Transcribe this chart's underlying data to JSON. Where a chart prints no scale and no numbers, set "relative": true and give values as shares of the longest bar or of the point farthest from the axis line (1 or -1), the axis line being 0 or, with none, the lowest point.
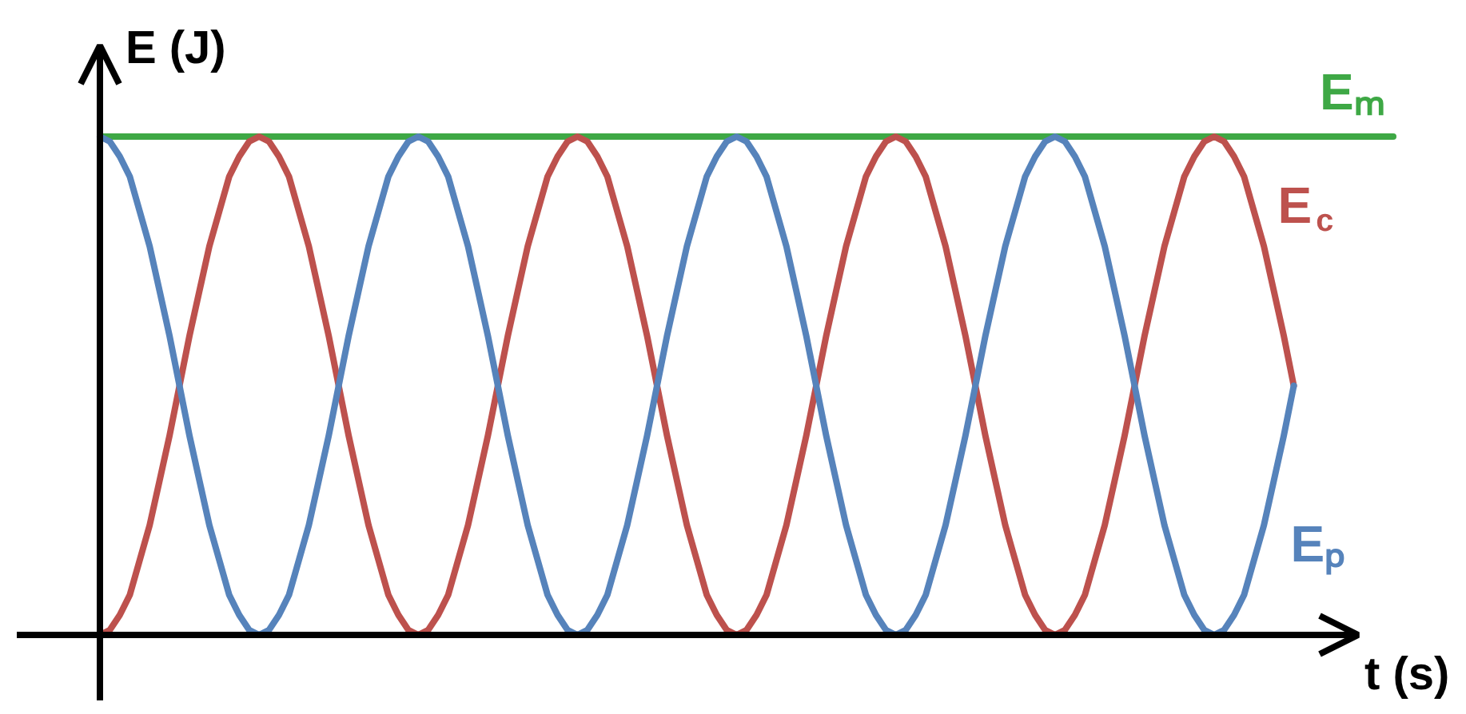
{
  "chart_data": {
    "type": "line",
    "relative": true,
    "xlabel": "t (s)",
    "ylabel": "E (J)",
    "categories": [
      null,
      null,
      null,
      null,
      null,
      null,
      null,
      null,
      null,
      null,
      null,
      null,
      null,
      null,
      null,
      null,
      null,
      null,
      null,
      null,
      null,
      null,
      null,
      null,
      null,
      null,
      null,
      null,
      null,
      null,
      null,
      null,
      null,
      null,
      null,
      null,
      null,
      null,
      null,
      null,
      null,
      null,
      null,
      null,
      null,
      null,
      null,
      null,
      null,
      null,
      null,
      null,
      null,
      null,
      null,
      null,
      null,
      null,
      null,
      null,
      null,
      null,
      null,
      null,
      null,
      null,
      null,
      null,
      null,
      null,
      null,
      null,
      null,
      null,
      null,
      null,
      null,
      null,
      null,
      null,
      null,
      null,
      null,
      null,
      null,
      null,
      null,
      null,
      null,
      null,
      null,
      null,
      null,
      null,
      null,
      null,
      null,
      null,
      null,
      null,
      null,
      null,
      null,
      null,
      null,
      null,
      null,
      null,
      null,
      null,
      null,
      null,
      null,
      null,
      null,
      null,
      null,
      null,
      null,
      null,
      null,
      null,
      null,
      null,
      null,
      null,
      null,
      null,
      null,
      null,
      null
    ],
    "series": [
      {
        "name": "Eₘ",
        "color": "#3ea845",
        "values": [
          1,
          1,
          1,
          1,
          1,
          1,
          1,
          1,
          1,
          1,
          1,
          1,
          1,
          1,
          1,
          1,
          1,
          1,
          1,
          1,
          1,
          1,
          1,
          1,
          1,
          1,
          1,
          1,
          1,
          1,
          1,
          1,
          1,
          1,
          1,
          1,
          1,
          1,
          1,
          1,
          1,
          1,
          1,
          1,
          1,
          1,
          1,
          1,
          1,
          1,
          1,
          1,
          1,
          1,
          1,
          1,
          1,
          1,
          1,
          1,
          1,
          1,
          1,
          1,
          1,
          1,
          1,
          1,
          1,
          1,
          1,
          1,
          1,
          1,
          1,
          1,
          1,
          1,
          1,
          1,
          1,
          1,
          1,
          1,
          1,
          1,
          1,
          1,
          1,
          1,
          1,
          1,
          1,
          1,
          1,
          1,
          1,
          1,
          1,
          1,
          1,
          1,
          1,
          1,
          1,
          1,
          1,
          1,
          1,
          1,
          1,
          1,
          1,
          1,
          1,
          1,
          1,
          1,
          1,
          1,
          1,
          1,
          1,
          1,
          1,
          1,
          1,
          1,
          1,
          1,
          1
        ]
      },
      {
        "name": "E$_{c}$",
        "color": "#bd514d",
        "values": [
          0,
          0.01,
          0.04,
          0.08,
          0.15,
          0.22,
          0.31,
          0.4,
          0.5,
          0.6,
          0.69,
          0.78,
          0.85,
          0.92,
          0.96,
          0.99,
          1,
          0.99,
          0.96,
          0.92,
          0.85,
          0.78,
          0.69,
          0.6,
          0.5,
          0.4,
          0.31,
          0.22,
          0.15,
          0.08,
          0.04,
          0.01,
          0,
          0.01,
          0.04,
          0.08,
          0.15,
          0.22,
          0.31,
          0.4,
          0.5,
          0.6,
          0.69,
          0.78,
          0.85,
          0.92,
          0.96,
          0.99,
          1,
          0.99,
          0.96,
          0.92,
          0.85,
          0.78,
          0.69,
          0.6,
          0.5,
          0.4,
          0.31,
          0.22,
          0.15,
          0.08,
          0.04,
          0.01,
          0,
          0.01,
          0.04,
          0.08,
          0.15,
          0.22,
          0.31,
          0.4,
          0.5,
          0.6,
          0.69,
          0.78,
          0.85,
          0.92,
          0.96,
          0.99,
          1,
          0.99,
          0.96,
          0.92,
          0.85,
          0.78,
          0.69,
          0.6,
          0.5,
          0.4,
          0.31,
          0.22,
          0.15,
          0.08,
          0.04,
          0.01,
          0,
          0.01,
          0.04,
          0.08,
          0.15,
          0.22,
          0.31,
          0.4,
          0.5,
          0.6,
          0.69,
          0.78,
          0.85,
          0.92,
          0.96,
          0.99,
          1,
          0.99,
          0.96,
          0.92,
          0.85,
          0.78,
          0.69,
          0.6,
          0.5,
          null,
          null,
          null,
          null,
          null,
          null,
          null,
          null,
          null,
          null
        ]
      },
      {
        "name": "Eₚ",
        "color": "#5683bb",
        "values": [
          1,
          0.99,
          0.96,
          0.92,
          0.85,
          0.78,
          0.69,
          0.6,
          0.5,
          0.4,
          0.31,
          0.22,
          0.15,
          0.08,
          0.04,
          0.01,
          0,
          0.01,
          0.04,
          0.08,
          0.15,
          0.22,
          0.31,
          0.4,
          0.5,
          0.6,
          0.69,
          0.78,
          0.85,
          0.92,
          0.96,
          0.99,
          1,
          0.99,
          0.96,
          0.92,
          0.85,
          0.78,
          0.69,
          0.6,
          0.5,
          0.4,
          0.31,
          0.22,
          0.15,
          0.08,
          0.04,
          0.01,
          0,
          0.01,
          0.04,
          0.08,
          0.15,
          0.22,
          0.31,
          0.4,
          0.5,
          0.6,
          0.69,
          0.78,
          0.85,
          0.92,
          0.96,
          0.99,
          1,
          0.99,
          0.96,
          0.92,
          0.85,
          0.78,
          0.69,
          0.6,
          0.5,
          0.4,
          0.31,
          0.22,
          0.15,
          0.08,
          0.04,
          0.01,
          0,
          0.01,
          0.04,
          0.08,
          0.15,
          0.22,
          0.31,
          0.4,
          0.5,
          0.6,
          0.69,
          0.78,
          0.85,
          0.92,
          0.96,
          0.99,
          1,
          0.99,
          0.96,
          0.92,
          0.85,
          0.78,
          0.69,
          0.6,
          0.5,
          0.4,
          0.31,
          0.22,
          0.15,
          0.08,
          0.04,
          0.01,
          0,
          0.01,
          0.04,
          0.08,
          0.15,
          0.22,
          0.31,
          0.4,
          0.5,
          null,
          null,
          null,
          null,
          null,
          null,
          null,
          null,
          null,
          null
        ]
      }
    ]
  }
}
